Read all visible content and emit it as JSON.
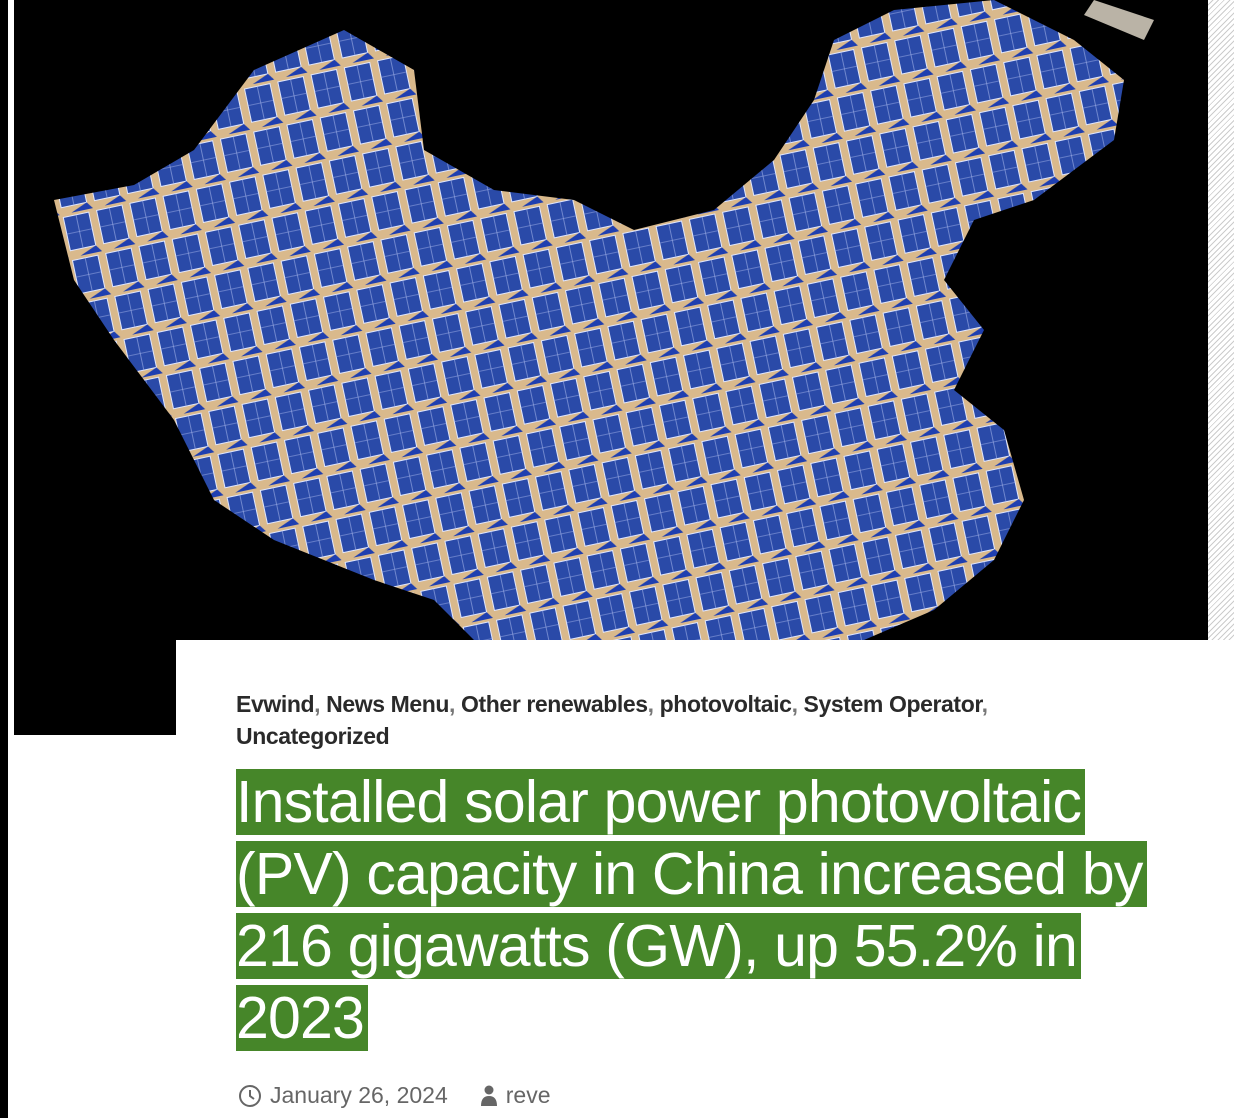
{
  "hero_image": {
    "alt": "Map of China filled with solar panels"
  },
  "categories": [
    "Evwind",
    "News Menu",
    "Other renewables",
    "photovoltaic",
    "System Operator",
    "Uncategorized"
  ],
  "title": "Installed solar power photovoltaic (PV) capacity in China increased by 216 gigawatts (GW), up 55.2% in 2023",
  "meta": {
    "date": "January 26, 2024",
    "author": "reve",
    "date_icon": "clock-icon",
    "author_icon": "user-icon"
  },
  "colors": {
    "title_highlight": "#468629",
    "panel_blue": "#2a4aa8",
    "sand": "#d9b98c"
  }
}
